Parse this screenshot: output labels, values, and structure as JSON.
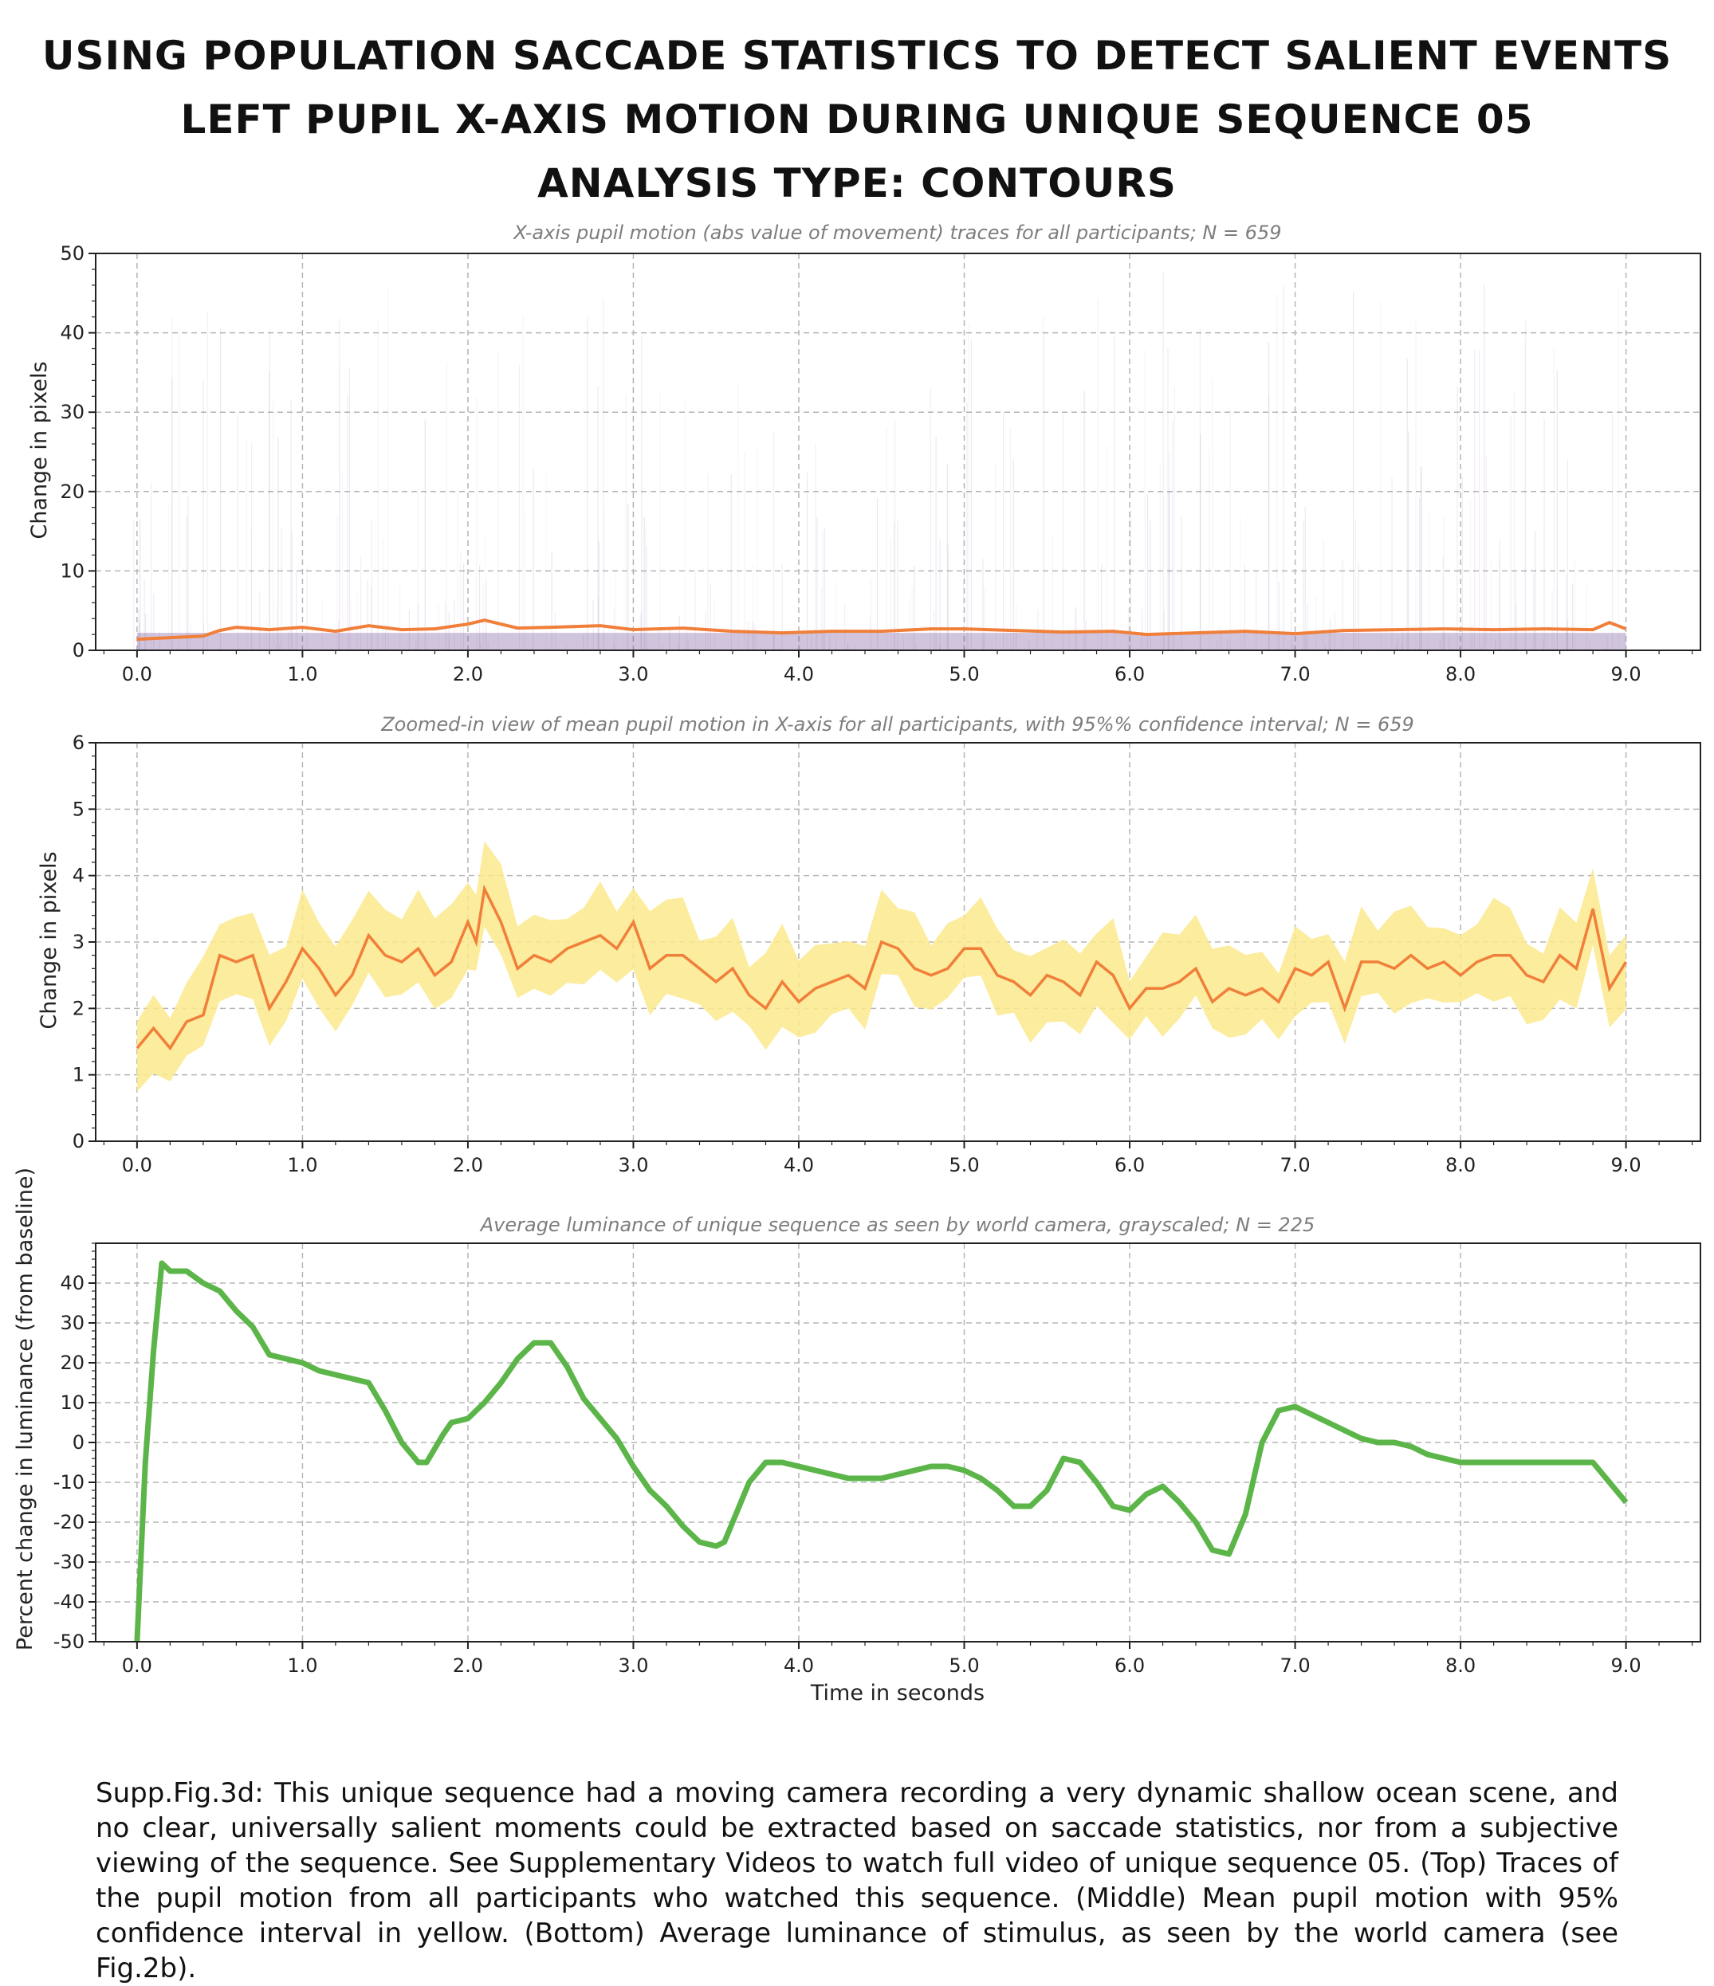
{
  "titles": [
    "USING POPULATION SACCADE STATISTICS TO DETECT SALIENT EVENTS",
    "LEFT PUPIL X-AXIS MOTION DURING UNIQUE SEQUENCE 05",
    "ANALYSIS TYPE: CONTOURS"
  ],
  "caption": "Supp.Fig.3d: This unique sequence had a moving camera recording a very dynamic shallow ocean scene, and no clear, universally salient moments could be extracted based on saccade statistics, nor from a subjective viewing of the sequence. See Supplementary Videos to watch full video of unique sequence 05. (Top) Traces of the pupil motion from all participants who watched this sequence. (Middle) Mean pupil motion with 95% confidence interval in yellow.  (Bottom) Average luminance of stimulus, as seen by the world camera (see Fig.2b).",
  "colors": {
    "mean": "#f07f3a",
    "traces": "#7a5a9e",
    "ci": "#fbe98c",
    "luminance": "#5cb548",
    "grid": "#b5b5b5"
  },
  "chart_data": [
    {
      "type": "line",
      "title": "X-axis pupil motion (abs value of movement) traces for all participants; N = 659",
      "xlabel": "",
      "ylabel": "Change in pixels",
      "xlim": [
        -0.25,
        9.45
      ],
      "ylim": [
        0,
        50
      ],
      "xticks": [
        "0.0",
        "1.0",
        "2.0",
        "3.0",
        "4.0",
        "5.0",
        "6.0",
        "7.0",
        "8.0",
        "9.0"
      ],
      "yticks": [
        "0",
        "10",
        "20",
        "30",
        "40",
        "50"
      ],
      "grid": true,
      "series": [
        {
          "role": "mean",
          "x": [
            0.0,
            0.2,
            0.4,
            0.5,
            0.6,
            0.8,
            1.0,
            1.2,
            1.4,
            1.6,
            1.8,
            2.0,
            2.1,
            2.3,
            2.5,
            2.8,
            3.0,
            3.3,
            3.6,
            3.9,
            4.2,
            4.5,
            4.8,
            5.0,
            5.3,
            5.6,
            5.9,
            6.1,
            6.4,
            6.7,
            7.0,
            7.3,
            7.6,
            7.9,
            8.2,
            8.5,
            8.8,
            8.9,
            9.0
          ],
          "y": [
            1.4,
            1.6,
            1.8,
            2.5,
            2.9,
            2.6,
            2.9,
            2.4,
            3.1,
            2.6,
            2.7,
            3.3,
            3.8,
            2.8,
            2.9,
            3.1,
            2.6,
            2.8,
            2.4,
            2.2,
            2.4,
            2.4,
            2.7,
            2.7,
            2.5,
            2.3,
            2.4,
            2.0,
            2.2,
            2.4,
            2.1,
            2.5,
            2.6,
            2.7,
            2.6,
            2.7,
            2.6,
            3.5,
            2.7
          ]
        }
      ]
    },
    {
      "type": "line",
      "title": "Zoomed-in view of mean pupil motion in X-axis for all participants, with 95%% confidence interval; N = 659",
      "xlabel": "",
      "ylabel": "Change in pixels",
      "xlim": [
        -0.25,
        9.45
      ],
      "ylim": [
        0,
        6
      ],
      "xticks": [
        "0.0",
        "1.0",
        "2.0",
        "3.0",
        "4.0",
        "5.0",
        "6.0",
        "7.0",
        "8.0",
        "9.0"
      ],
      "yticks": [
        "0",
        "1",
        "2",
        "3",
        "4",
        "5",
        "6"
      ],
      "grid": true,
      "series": [
        {
          "role": "mean",
          "x": [
            0.0,
            0.1,
            0.2,
            0.3,
            0.4,
            0.5,
            0.6,
            0.7,
            0.8,
            0.9,
            1.0,
            1.1,
            1.2,
            1.3,
            1.4,
            1.5,
            1.6,
            1.7,
            1.8,
            1.9,
            2.0,
            2.05,
            2.1,
            2.2,
            2.3,
            2.4,
            2.5,
            2.6,
            2.7,
            2.8,
            2.9,
            3.0,
            3.1,
            3.2,
            3.3,
            3.4,
            3.5,
            3.6,
            3.7,
            3.8,
            3.9,
            4.0,
            4.1,
            4.2,
            4.3,
            4.4,
            4.5,
            4.6,
            4.7,
            4.8,
            4.9,
            5.0,
            5.1,
            5.2,
            5.3,
            5.4,
            5.5,
            5.6,
            5.7,
            5.8,
            5.9,
            6.0,
            6.1,
            6.2,
            6.3,
            6.4,
            6.5,
            6.6,
            6.7,
            6.8,
            6.9,
            7.0,
            7.1,
            7.2,
            7.3,
            7.4,
            7.5,
            7.6,
            7.7,
            7.8,
            7.9,
            8.0,
            8.1,
            8.2,
            8.3,
            8.4,
            8.5,
            8.6,
            8.7,
            8.8,
            8.9,
            9.0
          ],
          "y": [
            1.4,
            1.7,
            1.4,
            1.8,
            1.9,
            2.8,
            2.7,
            2.8,
            2.0,
            2.4,
            2.9,
            2.6,
            2.2,
            2.5,
            3.1,
            2.8,
            2.7,
            2.9,
            2.5,
            2.7,
            3.3,
            3.0,
            3.8,
            3.3,
            2.6,
            2.8,
            2.7,
            2.9,
            3.0,
            3.1,
            2.9,
            3.3,
            2.6,
            2.8,
            2.8,
            2.6,
            2.4,
            2.6,
            2.2,
            2.0,
            2.4,
            2.1,
            2.3,
            2.4,
            2.5,
            2.3,
            3.0,
            2.9,
            2.6,
            2.5,
            2.6,
            2.9,
            2.9,
            2.5,
            2.4,
            2.2,
            2.5,
            2.4,
            2.2,
            2.7,
            2.5,
            2.0,
            2.3,
            2.3,
            2.4,
            2.6,
            2.1,
            2.3,
            2.2,
            2.3,
            2.1,
            2.6,
            2.5,
            2.7,
            2.0,
            2.7,
            2.7,
            2.6,
            2.8,
            2.6,
            2.7,
            2.5,
            2.7,
            2.8,
            2.8,
            2.5,
            2.4,
            2.8,
            2.6,
            3.5,
            2.3,
            2.7
          ]
        },
        {
          "role": "ci-upper",
          "offset": 0.55
        },
        {
          "role": "ci-lower",
          "offset": -0.5
        }
      ]
    },
    {
      "type": "line",
      "title": "Average luminance of unique sequence as seen by world camera, grayscaled; N = 225",
      "xlabel": "Time in seconds",
      "ylabel": "Percent change in luminance (from baseline)",
      "xlim": [
        -0.25,
        9.45
      ],
      "ylim": [
        -50,
        50
      ],
      "xticks": [
        "0.0",
        "1.0",
        "2.0",
        "3.0",
        "4.0",
        "5.0",
        "6.0",
        "7.0",
        "8.0",
        "9.0"
      ],
      "yticks": [
        "-50",
        "-40",
        "-30",
        "-20",
        "-10",
        "0",
        "10",
        "20",
        "30",
        "40"
      ],
      "grid": true,
      "series": [
        {
          "role": "luminance",
          "x": [
            0.0,
            0.05,
            0.1,
            0.15,
            0.2,
            0.3,
            0.4,
            0.5,
            0.6,
            0.7,
            0.8,
            0.9,
            1.0,
            1.1,
            1.2,
            1.3,
            1.4,
            1.5,
            1.6,
            1.7,
            1.75,
            1.85,
            1.9,
            2.0,
            2.1,
            2.2,
            2.3,
            2.4,
            2.5,
            2.6,
            2.7,
            2.8,
            2.9,
            3.0,
            3.1,
            3.2,
            3.3,
            3.4,
            3.5,
            3.55,
            3.6,
            3.7,
            3.8,
            3.9,
            4.0,
            4.1,
            4.2,
            4.3,
            4.4,
            4.5,
            4.6,
            4.7,
            4.8,
            4.9,
            5.0,
            5.1,
            5.2,
            5.3,
            5.4,
            5.5,
            5.6,
            5.7,
            5.8,
            5.9,
            6.0,
            6.1,
            6.2,
            6.3,
            6.4,
            6.5,
            6.6,
            6.7,
            6.8,
            6.9,
            7.0,
            7.1,
            7.2,
            7.3,
            7.4,
            7.5,
            7.6,
            7.7,
            7.8,
            7.9,
            8.0,
            8.1,
            8.2,
            8.3,
            8.4,
            8.5,
            8.6,
            8.7,
            8.8,
            8.9,
            9.0
          ],
          "y": [
            -50,
            -5,
            23,
            45,
            43,
            43,
            40,
            38,
            33,
            29,
            22,
            21,
            20,
            18,
            17,
            16,
            15,
            8,
            0,
            -5,
            -5,
            2,
            5,
            6,
            10,
            15,
            21,
            25,
            25,
            19,
            11,
            6,
            1,
            -6,
            -12,
            -16,
            -21,
            -25,
            -26,
            -25,
            -20,
            -10,
            -5,
            -5,
            -6,
            -7,
            -8,
            -9,
            -9,
            -9,
            -8,
            -7,
            -6,
            -6,
            -7,
            -9,
            -12,
            -16,
            -16,
            -12,
            -4,
            -5,
            -10,
            -16,
            -17,
            -13,
            -11,
            -15,
            -20,
            -27,
            -28,
            -18,
            0,
            8,
            9,
            7,
            5,
            3,
            1,
            0,
            0,
            -1,
            -3,
            -4,
            -5,
            -5,
            -5,
            -5,
            -5,
            -5,
            -5,
            -5,
            -5,
            -10,
            -15
          ]
        }
      ]
    }
  ]
}
